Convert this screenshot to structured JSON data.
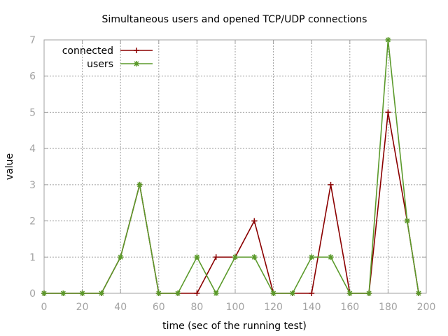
{
  "chart_data": {
    "type": "line",
    "title": "Simultaneous users and opened TCP/UDP connections",
    "xlabel": "time (sec of the running test)",
    "ylabel": "value",
    "xlim": [
      0,
      200
    ],
    "ylim": [
      0,
      7
    ],
    "xticks": [
      0,
      20,
      40,
      60,
      80,
      100,
      120,
      140,
      160,
      180,
      200
    ],
    "yticks": [
      0,
      1,
      2,
      3,
      4,
      5,
      6,
      7
    ],
    "grid": true,
    "legend_position": "top-left",
    "series": [
      {
        "name": "connected",
        "color": "#8b0000",
        "marker": "plus",
        "x": [
          0,
          10,
          20,
          30,
          40,
          50,
          60,
          70,
          80,
          90,
          100,
          110,
          120,
          130,
          140,
          150,
          160,
          170,
          180,
          190,
          196
        ],
        "y": [
          0,
          0,
          0,
          0,
          1,
          3,
          0,
          0,
          0,
          1,
          1,
          2,
          0,
          0,
          0,
          3,
          0,
          0,
          5,
          2,
          0
        ]
      },
      {
        "name": "users",
        "color": "#5b9a2b",
        "marker": "star",
        "x": [
          0,
          10,
          20,
          30,
          40,
          50,
          60,
          70,
          80,
          90,
          100,
          110,
          120,
          130,
          140,
          150,
          160,
          170,
          180,
          190,
          196
        ],
        "y": [
          0,
          0,
          0,
          0,
          1,
          3,
          0,
          0,
          1,
          0,
          1,
          1,
          0,
          0,
          1,
          1,
          0,
          0,
          7,
          2,
          0
        ]
      }
    ]
  }
}
